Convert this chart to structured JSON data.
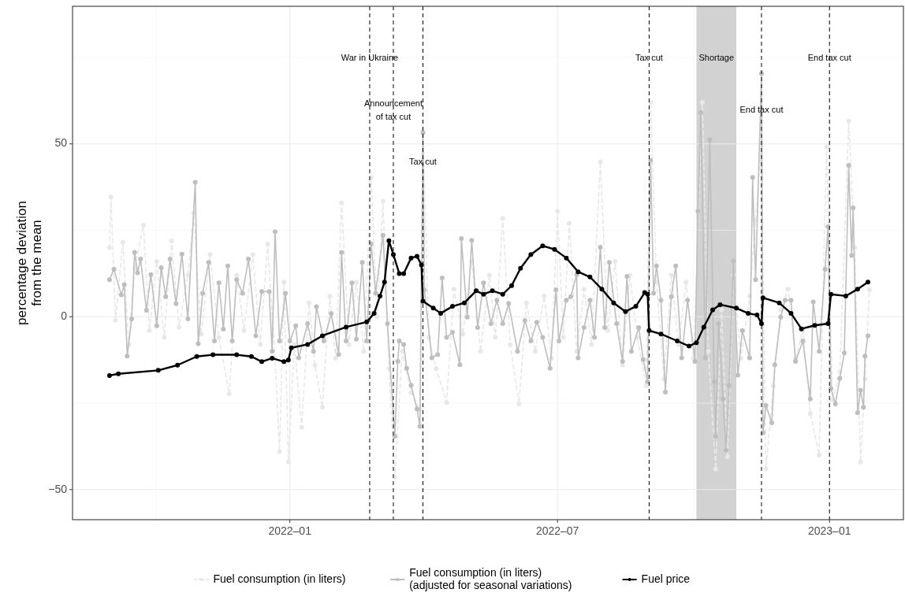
{
  "chart_data": {
    "type": "line",
    "ylabel": "percentage deviation\nfrom the mean",
    "xlim": [
      "2021-08-07",
      "2023-02-20"
    ],
    "ylim": [
      -58.7,
      89.8
    ],
    "xticks": [
      {
        "value": "2022-01",
        "label": "2022–01"
      },
      {
        "value": "2022-07",
        "label": "2022–07"
      },
      {
        "value": "2023-01",
        "label": "2023–01"
      }
    ],
    "yticks": [
      {
        "value": -50,
        "label": "−50"
      },
      0,
      50
    ],
    "grid": true,
    "legend": "bottom",
    "marker": "circle",
    "series": [
      {
        "name": "Fuel consumption (in liters)",
        "color": "#e8e8e8",
        "line_style": "dashed",
        "x": [
          "2021-09-01",
          "2021-09-02",
          "2021-09-05",
          "2021-09-10",
          "2021-09-14",
          "2021-09-18",
          "2021-09-24",
          "2021-09-28",
          "2021-10-03",
          "2021-10-08",
          "2021-10-13",
          "2021-10-18",
          "2021-10-24",
          "2021-10-28",
          "2021-11-02",
          "2021-11-08",
          "2021-11-14",
          "2021-11-21",
          "2021-11-26",
          "2021-12-01",
          "2021-12-07",
          "2021-12-12",
          "2021-12-17",
          "2021-12-22",
          "2021-12-25",
          "2021-12-28",
          "2021-12-31",
          "2022-01-04",
          "2022-01-09",
          "2022-01-14",
          "2022-01-18",
          "2022-01-23",
          "2022-01-28",
          "2022-02-01",
          "2022-02-05",
          "2022-02-10",
          "2022-02-15",
          "2022-02-20",
          "2022-02-25",
          "2022-03-01",
          "2022-03-05",
          "2022-03-09",
          "2022-03-13",
          "2022-03-18",
          "2022-03-24",
          "2022-03-30",
          "2022-04-01",
          "2022-04-05",
          "2022-04-10",
          "2022-04-17",
          "2022-04-22",
          "2022-04-28",
          "2022-05-04",
          "2022-05-10",
          "2022-05-16",
          "2022-05-20",
          "2022-05-25",
          "2022-05-30",
          "2022-06-05",
          "2022-06-10",
          "2022-06-16",
          "2022-06-22",
          "2022-06-27",
          "2022-07-01",
          "2022-07-05",
          "2022-07-09",
          "2022-07-14",
          "2022-07-19",
          "2022-07-24",
          "2022-07-30",
          "2022-08-04",
          "2022-08-09",
          "2022-08-14",
          "2022-08-19",
          "2022-08-24",
          "2022-08-30",
          "2022-09-02",
          "2022-09-06",
          "2022-09-11",
          "2022-09-16",
          "2022-09-21",
          "2022-09-26",
          "2022-10-01",
          "2022-10-07",
          "2022-10-11",
          "2022-10-16",
          "2022-10-20",
          "2022-10-24",
          "2022-10-28",
          "2022-11-02",
          "2022-11-08",
          "2022-11-12",
          "2022-11-16",
          "2022-11-19",
          "2022-11-24",
          "2022-11-29",
          "2022-12-04",
          "2022-12-09",
          "2022-12-14",
          "2022-12-19",
          "2022-12-25",
          "2022-12-30",
          "2023-01-03",
          "2023-01-08",
          "2023-01-14",
          "2023-01-18",
          "2023-01-22",
          "2023-01-25",
          "2023-01-28"
        ],
        "values": [
          20,
          34.6,
          -1,
          21.6,
          -8,
          14,
          26.5,
          -4,
          16,
          -6,
          22,
          -3,
          12,
          30,
          -5,
          18,
          -6,
          -22.3,
          12,
          -4,
          18,
          -8,
          21,
          -12,
          -39,
          10,
          -42,
          -8,
          -32,
          4,
          -14,
          -26.2,
          6,
          -12,
          32.9,
          -8,
          10,
          -10,
          40.3,
          0,
          33.4,
          -15,
          -46.4,
          -10,
          -22,
          -27,
          54,
          -6,
          -15,
          -24.8,
          8,
          -5,
          16,
          -10,
          12,
          -6,
          28.5,
          -8,
          -25.2,
          4,
          -10,
          6,
          -12,
          30.5,
          -6,
          27,
          -10,
          8,
          -8,
          44.8,
          -4,
          16,
          -14,
          12,
          -6,
          -20,
          62,
          10,
          -18,
          12,
          -8,
          10,
          -12,
          62,
          -10,
          -44,
          2,
          -40.5,
          12,
          -12,
          6,
          28,
          50,
          -44,
          -20,
          2,
          8,
          -12,
          -4,
          -28,
          -40,
          49.2,
          -24,
          -16,
          56.6,
          20,
          -42,
          -18,
          7.8
        ]
      },
      {
        "name": "Fuel consumption (in liters)\n(adjusted for seasonal variations)",
        "color": "#bebebe",
        "line_style": "solid",
        "x": [
          "2021-09-01",
          "2021-09-04",
          "2021-09-09",
          "2021-09-11",
          "2021-09-13",
          "2021-09-16",
          "2021-09-18",
          "2021-09-20",
          "2021-09-22",
          "2021-09-26",
          "2021-09-29",
          "2021-10-03",
          "2021-10-06",
          "2021-10-09",
          "2021-10-12",
          "2021-10-16",
          "2021-10-20",
          "2021-10-24",
          "2021-10-29",
          "2021-10-31",
          "2021-11-03",
          "2021-11-07",
          "2021-11-11",
          "2021-11-14",
          "2021-11-17",
          "2021-11-20",
          "2021-11-23",
          "2021-11-26",
          "2021-11-30",
          "2021-12-04",
          "2021-12-09",
          "2021-12-13",
          "2021-12-18",
          "2021-12-20",
          "2021-12-22",
          "2021-12-25",
          "2021-12-29",
          "2022-01-01",
          "2022-01-05",
          "2022-01-07",
          "2022-01-13",
          "2022-01-17",
          "2022-01-19",
          "2022-01-24",
          "2022-01-29",
          "2022-02-03",
          "2022-02-05",
          "2022-02-08",
          "2022-02-12",
          "2022-02-15",
          "2022-02-19",
          "2022-02-22",
          "2022-02-25",
          "2022-02-28",
          "2022-03-05",
          "2022-03-08",
          "2022-03-13",
          "2022-03-15",
          "2022-03-16",
          "2022-03-19",
          "2022-03-21",
          "2022-03-24",
          "2022-03-28",
          "2022-03-30",
          "2022-04-01",
          "2022-04-02",
          "2022-04-07",
          "2022-04-11",
          "2022-04-14",
          "2022-04-17",
          "2022-04-21",
          "2022-04-26",
          "2022-04-27",
          "2022-05-01",
          "2022-05-04",
          "2022-05-08",
          "2022-05-12",
          "2022-05-17",
          "2022-05-21",
          "2022-05-25",
          "2022-05-29",
          "2022-06-04",
          "2022-06-09",
          "2022-06-13",
          "2022-06-17",
          "2022-06-21",
          "2022-06-26",
          "2022-06-30",
          "2022-07-02",
          "2022-07-07",
          "2022-07-10",
          "2022-07-14",
          "2022-07-15",
          "2022-07-19",
          "2022-07-23",
          "2022-07-26",
          "2022-07-30",
          "2022-08-02",
          "2022-08-05",
          "2022-08-10",
          "2022-08-14",
          "2022-08-17",
          "2022-08-20",
          "2022-08-25",
          "2022-08-28",
          "2022-08-31",
          "2022-09-02",
          "2022-09-04",
          "2022-09-06",
          "2022-09-09",
          "2022-09-12",
          "2022-09-16",
          "2022-09-19",
          "2022-09-23",
          "2022-09-27",
          "2022-10-02",
          "2022-10-04",
          "2022-10-06",
          "2022-10-09",
          "2022-10-12",
          "2022-10-15",
          "2022-10-16",
          "2022-10-18",
          "2022-10-21",
          "2022-10-23",
          "2022-10-25",
          "2022-10-28",
          "2022-10-31",
          "2022-11-03",
          "2022-11-08",
          "2022-11-10",
          "2022-11-12",
          "2022-11-16",
          "2022-11-17",
          "2022-11-19",
          "2022-11-23",
          "2022-11-25",
          "2022-11-29",
          "2022-12-02",
          "2022-12-06",
          "2022-12-09",
          "2022-12-14",
          "2022-12-19",
          "2022-12-21",
          "2022-12-25",
          "2022-12-29",
          "2022-12-31",
          "2023-01-02",
          "2023-01-05",
          "2023-01-08",
          "2023-01-11",
          "2023-01-14",
          "2023-01-16",
          "2023-01-17",
          "2023-01-20",
          "2023-01-22",
          "2023-01-24",
          "2023-01-25",
          "2023-01-27"
        ],
        "values": [
          10.7,
          13.7,
          6.3,
          9.3,
          -11.4,
          -0.6,
          18.6,
          12.7,
          16.7,
          1.9,
          12.2,
          -2.6,
          14.2,
          5.8,
          16.7,
          3.8,
          18.1,
          -0.6,
          38.9,
          -7.8,
          6.8,
          15.7,
          -7,
          9.8,
          -3.6,
          14.7,
          -7,
          10.7,
          6.8,
          16.7,
          -5.5,
          7.3,
          7.3,
          -10,
          24.6,
          -7,
          6.8,
          -7,
          -2.6,
          -11.9,
          -2,
          -10,
          2.9,
          -7,
          0.9,
          -10.9,
          18.6,
          -7,
          9.8,
          -6.5,
          15.7,
          -7,
          21.1,
          6.8,
          23.6,
          -2,
          -34.6,
          -12.9,
          -7,
          -8,
          -14.9,
          -19.8,
          -26.7,
          -31.7,
          53.2,
          7.8,
          -11.9,
          -10.9,
          11.2,
          -6,
          -4.5,
          -13.9,
          22.6,
          -0.1,
          22.1,
          -3.1,
          9.8,
          -2,
          4.8,
          -2,
          3.8,
          -10,
          -1.1,
          -7,
          -1.6,
          -6,
          -14.9,
          7.8,
          -7,
          4.8,
          5.8,
          12.2,
          -11.9,
          -3.1,
          4.8,
          -6,
          20.1,
          -3.1,
          15.7,
          -2,
          -12.9,
          11.7,
          -10,
          -3.1,
          -12.4,
          -18.8,
          45.3,
          6.8,
          14.7,
          4.8,
          -21.8,
          5.8,
          14.7,
          -11.9,
          4.8,
          -12.9,
          30.5,
          59.1,
          -11.9,
          51.2,
          -18.8,
          -34.6,
          -2,
          -23.8,
          -38.6,
          -19.8,
          16.2,
          -16.9,
          -4,
          -11.9,
          40.3,
          10.7,
          70.4,
          -33.6,
          -25.7,
          -30.7,
          -13.9,
          -0.1,
          4.8,
          4.8,
          -12.9,
          -7,
          -23.8,
          4.3,
          -10,
          13.7,
          26,
          -20.8,
          -25.2,
          -17.8,
          -10.5,
          43.8,
          17.7,
          31.5,
          -27.7,
          -21.3,
          -26.2,
          -11.4,
          -5.5
        ]
      },
      {
        "name": "Fuel price",
        "color": "#000000",
        "line_style": "solid",
        "x": [
          "2021-09-01",
          "2021-09-07",
          "2021-10-04",
          "2021-10-17",
          "2021-10-30",
          "2021-11-10",
          "2021-11-26",
          "2021-12-06",
          "2021-12-13",
          "2021-12-20",
          "2021-12-28",
          "2021-12-31",
          "2022-01-02",
          "2022-01-13",
          "2022-01-23",
          "2022-02-08",
          "2022-02-22",
          "2022-02-27",
          "2022-03-03",
          "2022-03-06",
          "2022-03-09",
          "2022-03-12",
          "2022-03-16",
          "2022-03-19",
          "2022-03-24",
          "2022-03-28",
          "2022-03-31",
          "2022-04-01",
          "2022-04-08",
          "2022-04-13",
          "2022-04-21",
          "2022-04-29",
          "2022-05-07",
          "2022-05-12",
          "2022-05-18",
          "2022-05-25",
          "2022-05-31",
          "2022-06-06",
          "2022-06-13",
          "2022-06-21",
          "2022-06-29",
          "2022-07-07",
          "2022-07-15",
          "2022-07-23",
          "2022-07-31",
          "2022-08-08",
          "2022-08-16",
          "2022-08-23",
          "2022-08-29",
          "2022-08-31",
          "2022-09-01",
          "2022-09-09",
          "2022-09-20",
          "2022-09-28",
          "2022-10-03",
          "2022-10-08",
          "2022-10-14",
          "2022-10-19",
          "2022-10-30",
          "2022-11-07",
          "2022-11-13",
          "2022-11-16",
          "2022-11-17",
          "2022-11-28",
          "2022-12-06",
          "2022-12-13",
          "2022-12-22",
          "2022-12-31",
          "2023-01-02",
          "2023-01-12",
          "2023-01-20",
          "2023-01-27"
        ],
        "values": [
          -17,
          -16.5,
          -15.5,
          -14,
          -11.5,
          -11,
          -11,
          -11.5,
          -13,
          -12,
          -13,
          -12.5,
          -9,
          -8,
          -5.5,
          -3,
          -1.5,
          1,
          6,
          10,
          22,
          18,
          12.5,
          12.5,
          17,
          17.5,
          15,
          4.5,
          2.5,
          1,
          3,
          4,
          7.5,
          6.5,
          7.5,
          6.5,
          9,
          14,
          18,
          20.5,
          19.5,
          17,
          13,
          11.5,
          8,
          4,
          1.5,
          3,
          7,
          6.5,
          -4,
          -5,
          -7,
          -8.5,
          -7.5,
          -3,
          2,
          3.5,
          2.5,
          1,
          0.5,
          -2,
          5.5,
          4,
          1,
          -3.5,
          -2.5,
          -2,
          6.5,
          6,
          8,
          10
        ]
      }
    ],
    "ref_lines": [
      {
        "axis": "x",
        "value": "2022-02-24",
        "label": "War in Ukraine",
        "color": "#000000",
        "line_style": "dashed"
      },
      {
        "axis": "x",
        "value": "2022-03-12",
        "label": "Announcement\nof tax cut",
        "color": "#000000",
        "line_style": "dashed"
      },
      {
        "axis": "x",
        "value": "2022-04-01",
        "label": "Tax cut",
        "color": "#000000",
        "line_style": "dashed"
      },
      {
        "axis": "x",
        "value": "2022-09-01",
        "label": "Tax cut",
        "color": "#000000",
        "line_style": "dashed"
      },
      {
        "axis": "x",
        "value": "2022-11-16",
        "label": "End tax cut",
        "color": "#000000",
        "line_style": "dashed"
      },
      {
        "axis": "x",
        "value": "2023-01-01",
        "label": "End tax cut",
        "color": "#000000",
        "line_style": "dashed"
      }
    ],
    "bands": [
      {
        "axis": "x",
        "from": "2022-10-03",
        "to": "2022-10-30",
        "label": "Shortage",
        "color": "#d2d2d2"
      }
    ]
  }
}
